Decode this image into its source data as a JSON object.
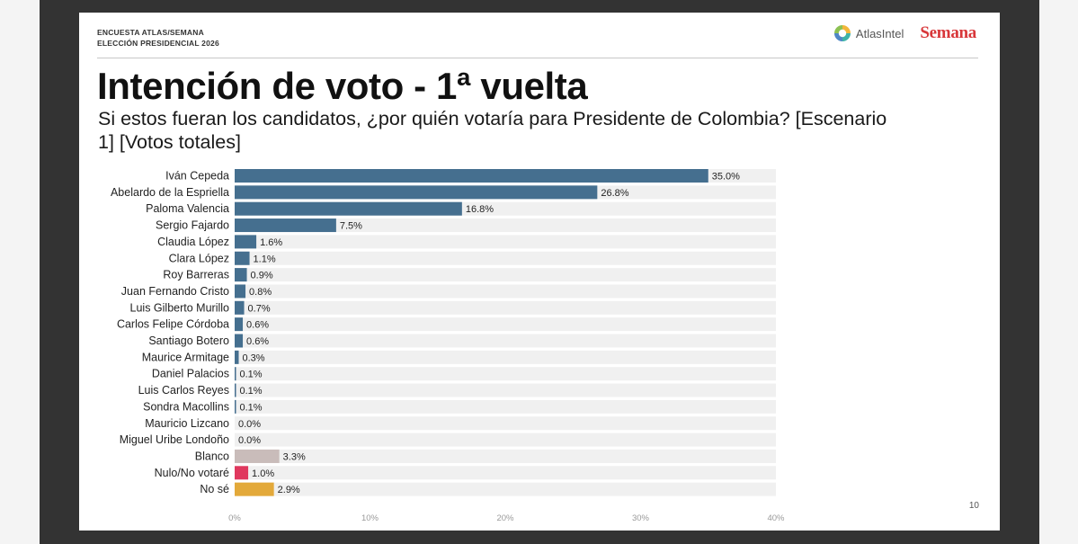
{
  "header": {
    "eyebrow_line1": "ENCUESTA ATLAS/SEMANA",
    "eyebrow_line2": "ELECCIÓN PRESIDENCIAL 2026",
    "logo_atlas": "AtlasIntel",
    "logo_semana": "Semana"
  },
  "title": "Intención de voto - 1ª vuelta",
  "subtitle": "Si estos fueran los candidatos, ¿por quién votaría para Presidente de Colombia? [Escenario 1] [Votos totales]",
  "page_number": "10",
  "colors": {
    "candidate": "#456f8f",
    "blanco": "#c9bcba",
    "nulo": "#e0385e",
    "no_se": "#e3a93a",
    "track": "#f0f0f0"
  },
  "chart_data": {
    "type": "bar",
    "orientation": "horizontal",
    "categories": [
      "Iván Cepeda",
      "Abelardo de la Espriella",
      "Paloma Valencia",
      "Sergio Fajardo",
      "Claudia López",
      "Clara López",
      "Roy Barreras",
      "Juan Fernando Cristo",
      "Luis Gilberto Murillo",
      "Carlos Felipe Córdoba",
      "Santiago Botero",
      "Maurice Armitage",
      "Daniel Palacios",
      "Luis Carlos Reyes",
      "Sondra Macollins",
      "Mauricio Lizcano",
      "Miguel Uribe Londoño",
      "Blanco",
      "Nulo/No votaré",
      "No sé"
    ],
    "values": [
      35.0,
      26.8,
      16.8,
      7.5,
      1.6,
      1.1,
      0.9,
      0.8,
      0.7,
      0.6,
      0.6,
      0.3,
      0.1,
      0.1,
      0.1,
      0.0,
      0.0,
      3.3,
      1.0,
      2.9
    ],
    "value_labels": [
      "35.0%",
      "26.8%",
      "16.8%",
      "7.5%",
      "1.6%",
      "1.1%",
      "0.9%",
      "0.8%",
      "0.7%",
      "0.6%",
      "0.6%",
      "0.3%",
      "0.1%",
      "0.1%",
      "0.1%",
      "0.0%",
      "0.0%",
      "3.3%",
      "1.0%",
      "2.9%"
    ],
    "bar_color_keys": [
      "candidate",
      "candidate",
      "candidate",
      "candidate",
      "candidate",
      "candidate",
      "candidate",
      "candidate",
      "candidate",
      "candidate",
      "candidate",
      "candidate",
      "candidate",
      "candidate",
      "candidate",
      "candidate",
      "candidate",
      "blanco",
      "nulo",
      "no_se"
    ],
    "x_ticks": [
      0,
      10,
      20,
      30,
      40
    ],
    "x_tick_labels": [
      "0%",
      "10%",
      "20%",
      "30%",
      "40%"
    ],
    "xlim": [
      0,
      40
    ],
    "grid": false,
    "legend": "none",
    "xlabel": "",
    "ylabel": ""
  }
}
